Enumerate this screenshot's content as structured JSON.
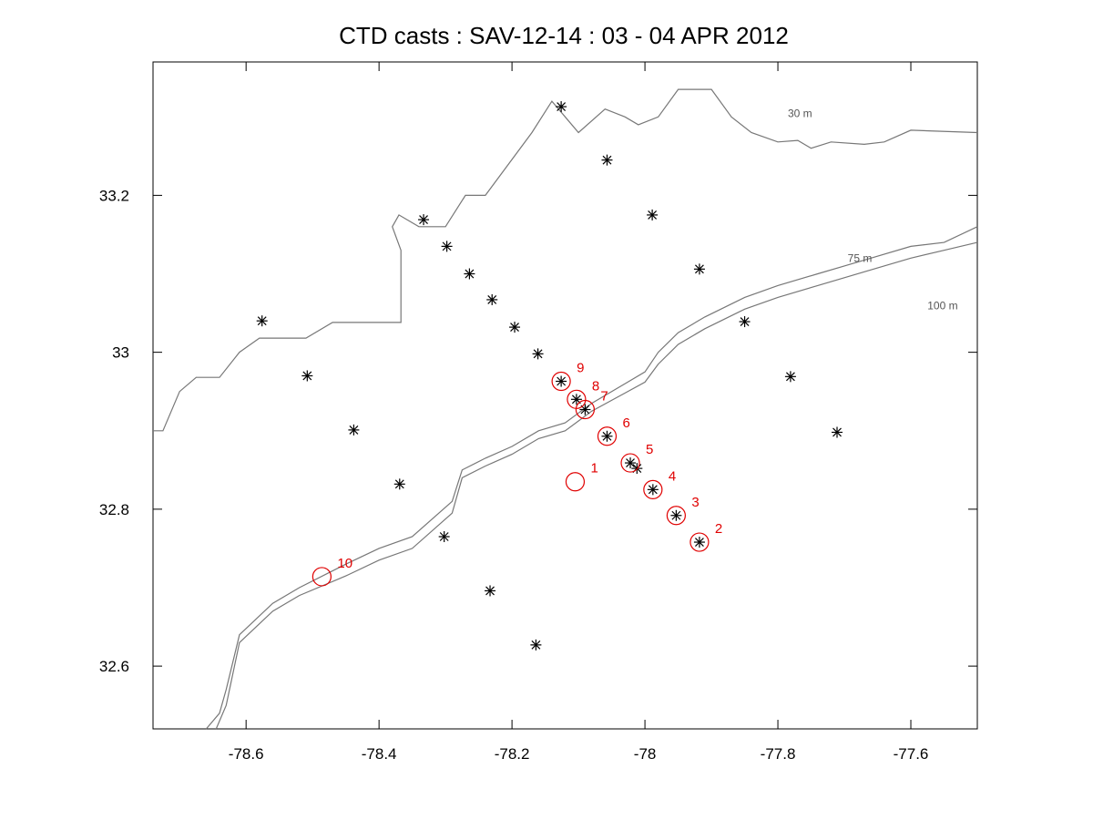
{
  "chart_data": {
    "type": "scatter",
    "title": "CTD  casts : SAV-12-14 :  03 - 04  APR  2012",
    "xlabel": "",
    "ylabel": "",
    "xlim": [
      -78.74,
      -77.5
    ],
    "ylim": [
      32.52,
      33.37
    ],
    "xticks": [
      -78.6,
      -78.4,
      -78.2,
      -78,
      -77.8,
      -77.6
    ],
    "xtick_labels": [
      "-78.6",
      "-78.4",
      "-78.2",
      "-78",
      "-77.8",
      "-77.6"
    ],
    "yticks": [
      32.6,
      32.8,
      33,
      33.2
    ],
    "ytick_labels": [
      "32.6",
      "32.8",
      "33",
      "33.2"
    ],
    "grid": false,
    "colors": {
      "stations": "#000000",
      "casts": "#e00000",
      "contours": "#777777"
    },
    "stations": [
      {
        "x": -78.126,
        "y": 33.313
      },
      {
        "x": -78.057,
        "y": 33.245
      },
      {
        "x": -77.989,
        "y": 33.175
      },
      {
        "x": -77.918,
        "y": 33.106
      },
      {
        "x": -77.85,
        "y": 33.039
      },
      {
        "x": -77.781,
        "y": 32.969
      },
      {
        "x": -77.711,
        "y": 32.898
      },
      {
        "x": -78.333,
        "y": 33.169
      },
      {
        "x": -78.298,
        "y": 33.135
      },
      {
        "x": -78.264,
        "y": 33.1
      },
      {
        "x": -78.23,
        "y": 33.067
      },
      {
        "x": -78.196,
        "y": 33.032
      },
      {
        "x": -78.161,
        "y": 32.998
      },
      {
        "x": -78.126,
        "y": 32.963
      },
      {
        "x": -78.103,
        "y": 32.94
      },
      {
        "x": -78.09,
        "y": 32.927
      },
      {
        "x": -78.057,
        "y": 32.893
      },
      {
        "x": -78.022,
        "y": 32.859
      },
      {
        "x": -78.012,
        "y": 32.852
      },
      {
        "x": -77.988,
        "y": 32.825
      },
      {
        "x": -77.953,
        "y": 32.792
      },
      {
        "x": -77.918,
        "y": 32.758
      },
      {
        "x": -78.576,
        "y": 33.04
      },
      {
        "x": -78.508,
        "y": 32.97
      },
      {
        "x": -78.438,
        "y": 32.901
      },
      {
        "x": -78.369,
        "y": 32.832
      },
      {
        "x": -78.302,
        "y": 32.765
      },
      {
        "x": -78.233,
        "y": 32.696
      },
      {
        "x": -78.164,
        "y": 32.627
      }
    ],
    "casts": [
      {
        "label": "1",
        "x": -78.105,
        "y": 32.835
      },
      {
        "label": "2",
        "x": -77.918,
        "y": 32.758
      },
      {
        "label": "3",
        "x": -77.953,
        "y": 32.792
      },
      {
        "label": "4",
        "x": -77.988,
        "y": 32.825
      },
      {
        "label": "5",
        "x": -78.022,
        "y": 32.859
      },
      {
        "label": "6",
        "x": -78.057,
        "y": 32.893
      },
      {
        "label": "7",
        "x": -78.09,
        "y": 32.927
      },
      {
        "label": "8",
        "x": -78.103,
        "y": 32.94
      },
      {
        "label": "9",
        "x": -78.126,
        "y": 32.963
      },
      {
        "label": "10",
        "x": -78.486,
        "y": 32.714
      }
    ],
    "contours": [
      {
        "label": "30 m",
        "label_at": {
          "x": -77.785,
          "y": 33.3
        },
        "points": [
          [
            -78.74,
            32.9
          ],
          [
            -78.725,
            32.9
          ],
          [
            -78.7,
            32.95
          ],
          [
            -78.675,
            32.968
          ],
          [
            -78.64,
            32.968
          ],
          [
            -78.61,
            33.0
          ],
          [
            -78.58,
            33.018
          ],
          [
            -78.54,
            33.018
          ],
          [
            -78.51,
            33.018
          ],
          [
            -78.47,
            33.038
          ],
          [
            -78.42,
            33.038
          ],
          [
            -78.367,
            33.038
          ],
          [
            -78.367,
            33.13
          ],
          [
            -78.38,
            33.16
          ],
          [
            -78.37,
            33.175
          ],
          [
            -78.34,
            33.16
          ],
          [
            -78.3,
            33.16
          ],
          [
            -78.27,
            33.2
          ],
          [
            -78.24,
            33.2
          ],
          [
            -78.17,
            33.28
          ],
          [
            -78.14,
            33.32
          ],
          [
            -78.12,
            33.3
          ],
          [
            -78.1,
            33.28
          ],
          [
            -78.06,
            33.31
          ],
          [
            -78.03,
            33.3
          ],
          [
            -78.01,
            33.29
          ],
          [
            -77.98,
            33.3
          ],
          [
            -77.95,
            33.335
          ],
          [
            -77.9,
            33.335
          ],
          [
            -77.87,
            33.3
          ],
          [
            -77.84,
            33.28
          ],
          [
            -77.8,
            33.268
          ],
          [
            -77.77,
            33.27
          ],
          [
            -77.75,
            33.26
          ],
          [
            -77.72,
            33.268
          ],
          [
            -77.67,
            33.265
          ],
          [
            -77.64,
            33.268
          ],
          [
            -77.6,
            33.283
          ],
          [
            -77.5,
            33.28
          ]
        ]
      },
      {
        "label": "75 m",
        "label_at": {
          "x": -77.695,
          "y": 33.115
        },
        "points": [
          [
            -78.66,
            32.52
          ],
          [
            -78.64,
            32.54
          ],
          [
            -78.63,
            32.57
          ],
          [
            -78.61,
            32.64
          ],
          [
            -78.56,
            32.68
          ],
          [
            -78.52,
            32.7
          ],
          [
            -78.45,
            32.73
          ],
          [
            -78.4,
            32.75
          ],
          [
            -78.35,
            32.765
          ],
          [
            -78.29,
            32.81
          ],
          [
            -78.275,
            32.85
          ],
          [
            -78.24,
            32.865
          ],
          [
            -78.2,
            32.88
          ],
          [
            -78.16,
            32.9
          ],
          [
            -78.12,
            32.91
          ],
          [
            -78.08,
            32.935
          ],
          [
            -78.03,
            32.96
          ],
          [
            -78.0,
            32.975
          ],
          [
            -77.98,
            33.0
          ],
          [
            -77.95,
            33.025
          ],
          [
            -77.91,
            33.045
          ],
          [
            -77.85,
            33.07
          ],
          [
            -77.8,
            33.085
          ],
          [
            -77.74,
            33.1
          ],
          [
            -77.7,
            33.11
          ],
          [
            -77.66,
            33.12
          ],
          [
            -77.6,
            33.135
          ],
          [
            -77.55,
            33.14
          ],
          [
            -77.5,
            33.16
          ]
        ]
      },
      {
        "label": "100 m",
        "label_at": {
          "x": -77.575,
          "y": 33.055
        },
        "points": [
          [
            -78.645,
            32.52
          ],
          [
            -78.63,
            32.55
          ],
          [
            -78.61,
            32.63
          ],
          [
            -78.56,
            32.67
          ],
          [
            -78.52,
            32.69
          ],
          [
            -78.45,
            32.715
          ],
          [
            -78.4,
            32.735
          ],
          [
            -78.35,
            32.75
          ],
          [
            -78.29,
            32.795
          ],
          [
            -78.275,
            32.84
          ],
          [
            -78.24,
            32.855
          ],
          [
            -78.2,
            32.87
          ],
          [
            -78.16,
            32.89
          ],
          [
            -78.12,
            32.9
          ],
          [
            -78.08,
            32.925
          ],
          [
            -78.03,
            32.948
          ],
          [
            -78.0,
            32.962
          ],
          [
            -77.98,
            32.985
          ],
          [
            -77.95,
            33.01
          ],
          [
            -77.91,
            33.03
          ],
          [
            -77.85,
            33.055
          ],
          [
            -77.8,
            33.07
          ],
          [
            -77.74,
            33.085
          ],
          [
            -77.7,
            33.095
          ],
          [
            -77.66,
            33.105
          ],
          [
            -77.6,
            33.12
          ],
          [
            -77.55,
            33.13
          ],
          [
            -77.5,
            33.14
          ]
        ]
      }
    ]
  }
}
